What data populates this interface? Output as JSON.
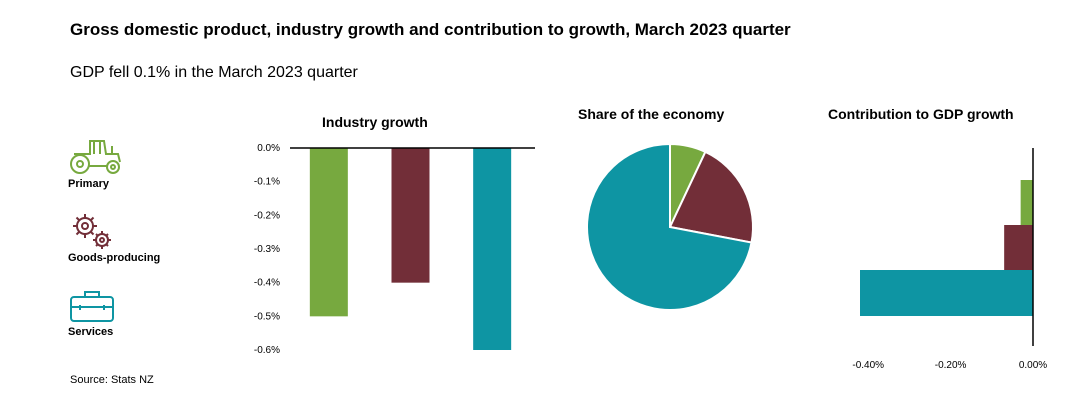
{
  "title": "Gross domestic product, industry growth and contribution to growth, March 2023 quarter",
  "subtitle": "GDP fell 0.1% in the March 2023 quarter",
  "source": "Source: Stats NZ",
  "legend": [
    {
      "label": "Primary",
      "icon": "tractor-icon",
      "color": "#77a93f"
    },
    {
      "label": "Goods-producing",
      "icon": "gears-icon",
      "color": "#722e38"
    },
    {
      "label": "Services",
      "icon": "briefcase-icon",
      "color": "#0e95a3"
    }
  ],
  "chart_data": [
    {
      "type": "bar",
      "title": "Industry growth",
      "categories": [
        "Primary",
        "Goods-producing",
        "Services"
      ],
      "values": [
        -0.5,
        -0.4,
        -0.6
      ],
      "colors": [
        "#77a93f",
        "#722e38",
        "#0e95a3"
      ],
      "ylim": [
        -0.6,
        0
      ],
      "yticks": [
        0,
        -0.1,
        -0.2,
        -0.3,
        -0.4,
        -0.5,
        -0.6
      ],
      "ytick_labels": [
        "0.0%",
        "-0.1%",
        "-0.2%",
        "-0.3%",
        "-0.4%",
        "-0.5%",
        "-0.6%"
      ]
    },
    {
      "type": "pie",
      "title": "Share of the economy",
      "categories": [
        "Primary",
        "Goods-producing",
        "Services"
      ],
      "values": [
        7,
        21,
        72
      ],
      "colors": [
        "#77a93f",
        "#722e38",
        "#0e95a3"
      ]
    },
    {
      "type": "bar",
      "orientation": "horizontal",
      "title": "Contribution to GDP growth",
      "categories": [
        "Primary",
        "Goods-producing",
        "Services"
      ],
      "values": [
        -0.03,
        -0.07,
        -0.42
      ],
      "colors": [
        "#77a93f",
        "#722e38",
        "#0e95a3"
      ],
      "xlim": [
        -0.42,
        0
      ],
      "xticks": [
        -0.4,
        -0.2,
        0
      ],
      "xtick_labels": [
        "-0.40%",
        "-0.20%",
        "0.00%"
      ]
    }
  ]
}
